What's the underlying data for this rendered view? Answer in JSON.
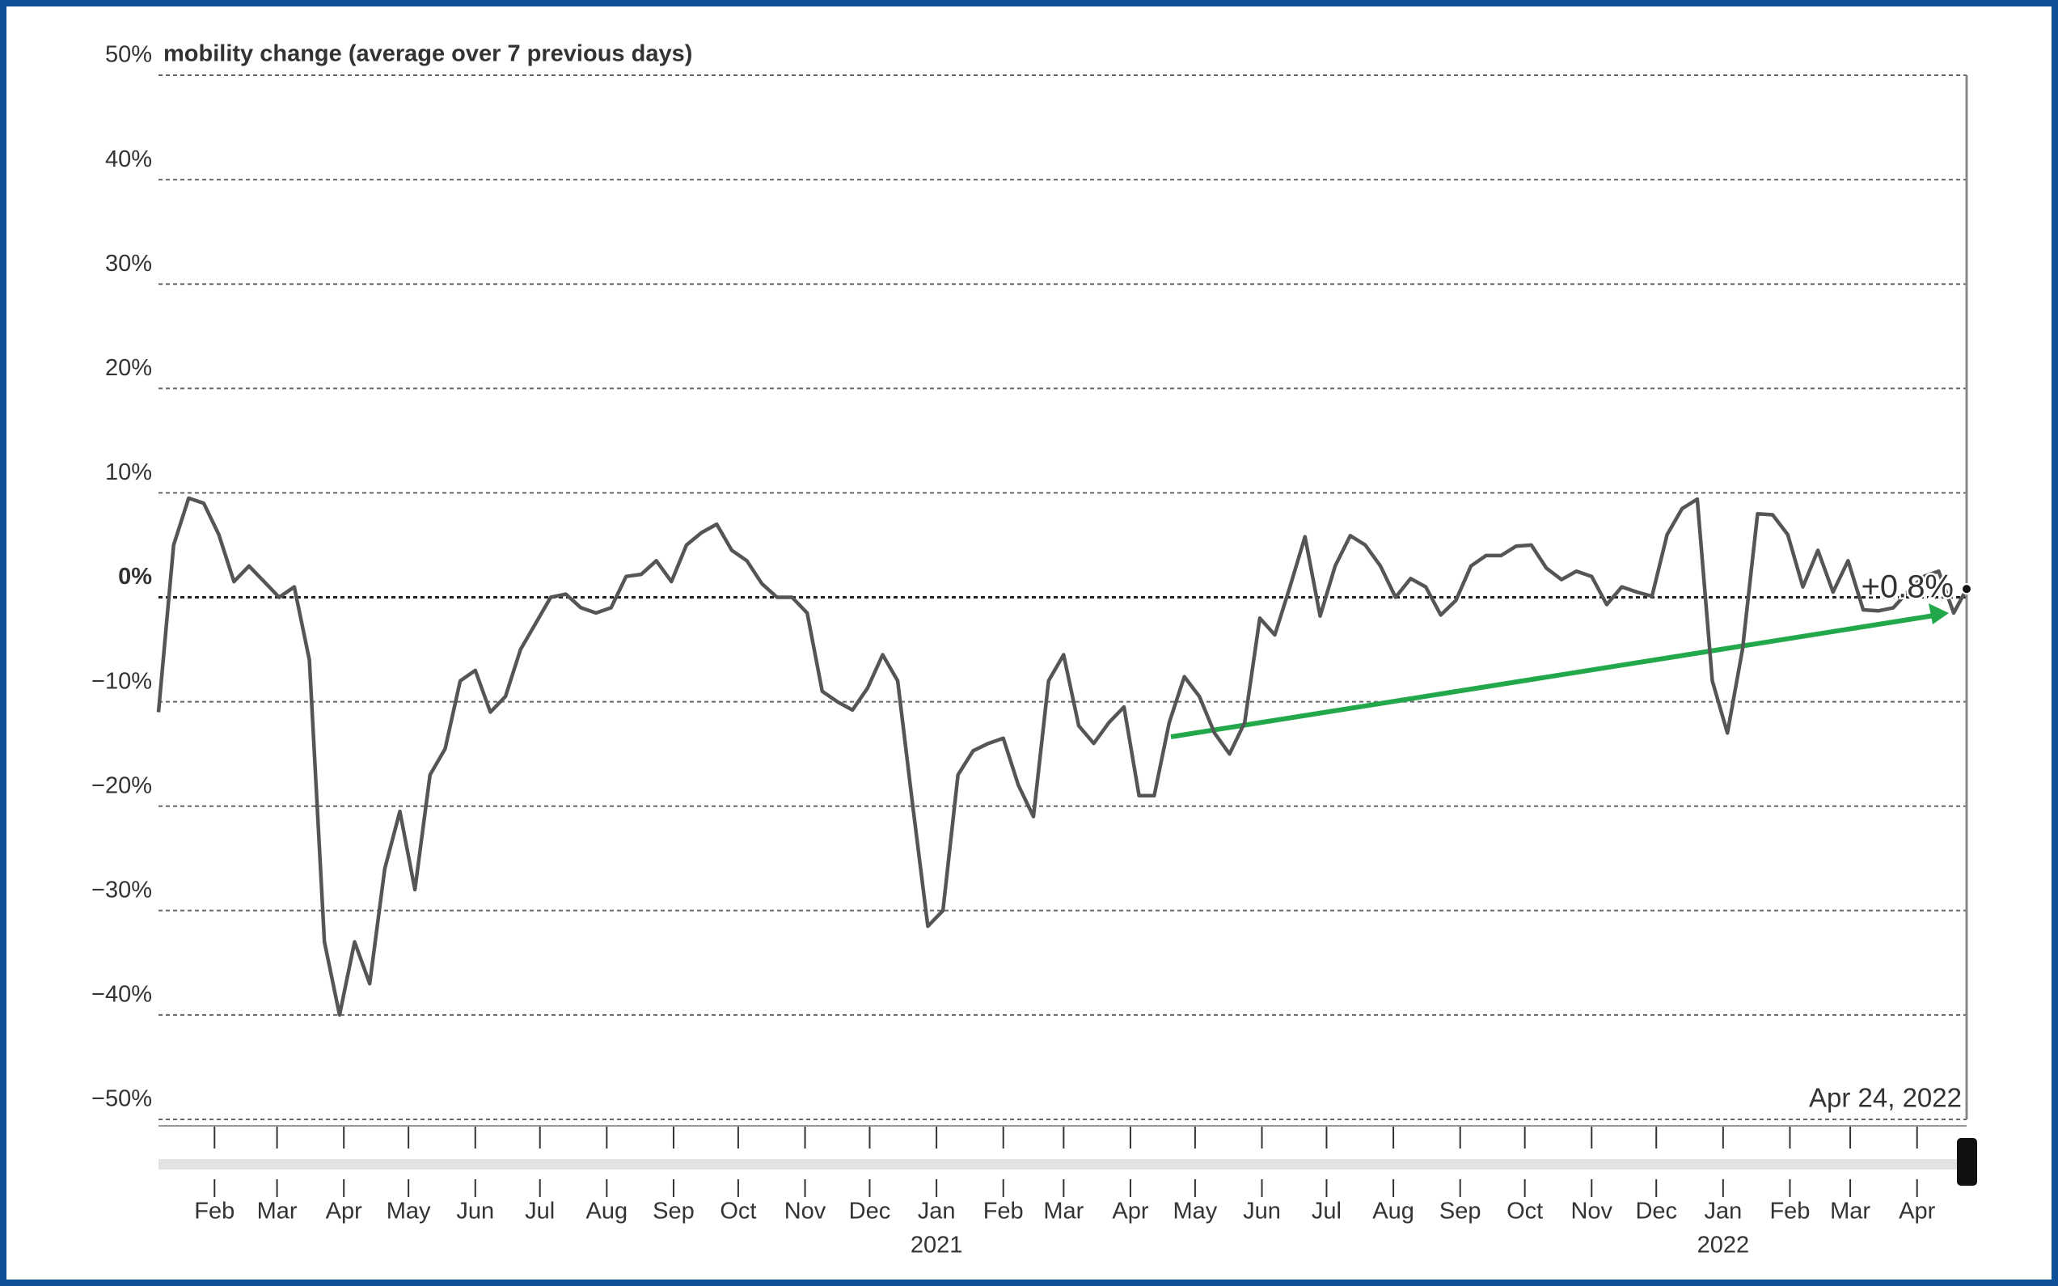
{
  "chart_data": {
    "type": "line",
    "y_axis_label": "mobility change (average over 7 previous days)",
    "x": [
      "2020-01-06",
      "2020-01-13",
      "2020-01-20",
      "2020-01-27",
      "2020-02-03",
      "2020-02-10",
      "2020-02-17",
      "2020-02-24",
      "2020-03-02",
      "2020-03-09",
      "2020-03-16",
      "2020-03-23",
      "2020-03-30",
      "2020-04-06",
      "2020-04-13",
      "2020-04-20",
      "2020-04-27",
      "2020-05-04",
      "2020-05-11",
      "2020-05-18",
      "2020-05-25",
      "2020-06-01",
      "2020-06-08",
      "2020-06-15",
      "2020-06-22",
      "2020-06-29",
      "2020-07-06",
      "2020-07-13",
      "2020-07-20",
      "2020-07-27",
      "2020-08-03",
      "2020-08-10",
      "2020-08-17",
      "2020-08-24",
      "2020-08-31",
      "2020-09-07",
      "2020-09-14",
      "2020-09-21",
      "2020-09-28",
      "2020-10-05",
      "2020-10-12",
      "2020-10-19",
      "2020-10-26",
      "2020-11-02",
      "2020-11-09",
      "2020-11-16",
      "2020-11-23",
      "2020-11-30",
      "2020-12-07",
      "2020-12-14",
      "2020-12-21",
      "2020-12-28",
      "2021-01-04",
      "2021-01-11",
      "2021-01-18",
      "2021-01-25",
      "2021-02-01",
      "2021-02-08",
      "2021-02-15",
      "2021-02-22",
      "2021-03-01",
      "2021-03-08",
      "2021-03-15",
      "2021-03-22",
      "2021-03-29",
      "2021-04-05",
      "2021-04-12",
      "2021-04-19",
      "2021-04-26",
      "2021-05-03",
      "2021-05-10",
      "2021-05-17",
      "2021-05-24",
      "2021-05-31",
      "2021-06-07",
      "2021-06-14",
      "2021-06-21",
      "2021-06-28",
      "2021-07-05",
      "2021-07-12",
      "2021-07-19",
      "2021-07-26",
      "2021-08-02",
      "2021-08-09",
      "2021-08-16",
      "2021-08-23",
      "2021-08-30",
      "2021-09-06",
      "2021-09-13",
      "2021-09-20",
      "2021-09-27",
      "2021-10-04",
      "2021-10-11",
      "2021-10-18",
      "2021-10-25",
      "2021-11-01",
      "2021-11-08",
      "2021-11-15",
      "2021-11-22",
      "2021-11-29",
      "2021-12-06",
      "2021-12-13",
      "2021-12-20",
      "2021-12-27",
      "2022-01-03",
      "2022-01-10",
      "2022-01-17",
      "2022-01-24",
      "2022-01-31",
      "2022-02-07",
      "2022-02-14",
      "2022-02-21",
      "2022-02-28",
      "2022-03-07",
      "2022-03-14",
      "2022-03-21",
      "2022-03-28",
      "2022-04-04",
      "2022-04-11",
      "2022-04-18",
      "2022-04-24"
    ],
    "series": [
      {
        "name": "mobility change",
        "color": "#555555",
        "values": [
          -11,
          5,
          9.5,
          9,
          6,
          1.5,
          3,
          1.5,
          0,
          1,
          -6,
          -33,
          -40,
          -33,
          -37,
          -26,
          -20.5,
          -28,
          -17,
          -14.5,
          -8,
          -7,
          -11,
          -9.5,
          -5,
          -2.5,
          0,
          0.3,
          -1,
          -1.5,
          -1,
          2,
          2.2,
          3.5,
          1.5,
          5,
          6.2,
          7,
          4.5,
          3.5,
          1.3,
          0,
          0,
          -1.5,
          -9,
          -10,
          -10.8,
          -8.7,
          -5.5,
          -8,
          -20,
          -31.5,
          -30,
          -17,
          -14.7,
          -14,
          -13.5,
          -18,
          -21,
          -8,
          -5.5,
          -12.3,
          -14,
          -12,
          -10.5,
          -19,
          -19,
          -12,
          -7.6,
          -9.5,
          -13,
          -15,
          -12,
          -2,
          -3.6,
          1,
          5.8,
          -1.8,
          3,
          5.9,
          5,
          3,
          0,
          1.8,
          1,
          -1.7,
          -0.3,
          3,
          4,
          4,
          4.9,
          5,
          2.8,
          1.7,
          2.5,
          2,
          -0.7,
          1,
          0.5,
          0.1,
          6,
          8.5,
          9.4,
          -8,
          -13,
          -5,
          8,
          7.9,
          6,
          1,
          4.5,
          0.5,
          3.5,
          -1.2,
          -1.3,
          -1,
          0.6,
          2,
          2.5,
          -1.5,
          0.8
        ]
      }
    ],
    "hover": {
      "date_label": "Apr 24, 2022",
      "value_label": "+0.8%"
    },
    "xlim": [
      "2020-01-06",
      "2022-04-24"
    ],
    "xticks": [
      {
        "value": "2020-02",
        "label": "Feb"
      },
      {
        "value": "2020-03",
        "label": "Mar"
      },
      {
        "value": "2020-04",
        "label": "Apr"
      },
      {
        "value": "2020-05",
        "label": "May"
      },
      {
        "value": "2020-06",
        "label": "Jun"
      },
      {
        "value": "2020-07",
        "label": "Jul"
      },
      {
        "value": "2020-08",
        "label": "Aug"
      },
      {
        "value": "2020-09",
        "label": "Sep"
      },
      {
        "value": "2020-10",
        "label": "Oct"
      },
      {
        "value": "2020-11",
        "label": "Nov"
      },
      {
        "value": "2020-12",
        "label": "Dec"
      },
      {
        "value": "2021-01",
        "label": "Jan"
      },
      {
        "value": "2021-02",
        "label": "Feb"
      },
      {
        "value": "2021-03",
        "label": "Mar"
      },
      {
        "value": "2021-04",
        "label": "Apr"
      },
      {
        "value": "2021-05",
        "label": "May"
      },
      {
        "value": "2021-06",
        "label": "Jun"
      },
      {
        "value": "2021-07",
        "label": "Jul"
      },
      {
        "value": "2021-08",
        "label": "Aug"
      },
      {
        "value": "2021-09",
        "label": "Sep"
      },
      {
        "value": "2021-10",
        "label": "Oct"
      },
      {
        "value": "2021-11",
        "label": "Nov"
      },
      {
        "value": "2021-12",
        "label": "Dec"
      },
      {
        "value": "2022-01",
        "label": "Jan"
      },
      {
        "value": "2022-02",
        "label": "Feb"
      },
      {
        "value": "2022-03",
        "label": "Mar"
      },
      {
        "value": "2022-04",
        "label": "Apr"
      }
    ],
    "year_labels": [
      {
        "value": "2021-01",
        "label": "2021"
      },
      {
        "value": "2022-01",
        "label": "2022"
      }
    ],
    "ylim": [
      -50,
      50
    ],
    "yticks": [
      {
        "value": -50,
        "label": "−50%"
      },
      {
        "value": -40,
        "label": "−40%"
      },
      {
        "value": -30,
        "label": "−30%"
      },
      {
        "value": -20,
        "label": "−20%"
      },
      {
        "value": -10,
        "label": "−10%"
      },
      {
        "value": 0,
        "label": "0%"
      },
      {
        "value": 10,
        "label": "10%"
      },
      {
        "value": 20,
        "label": "20%"
      },
      {
        "value": 30,
        "label": "30%"
      },
      {
        "value": 40,
        "label": "40%"
      },
      {
        "value": 50,
        "label": "50%"
      }
    ],
    "grid": true
  }
}
